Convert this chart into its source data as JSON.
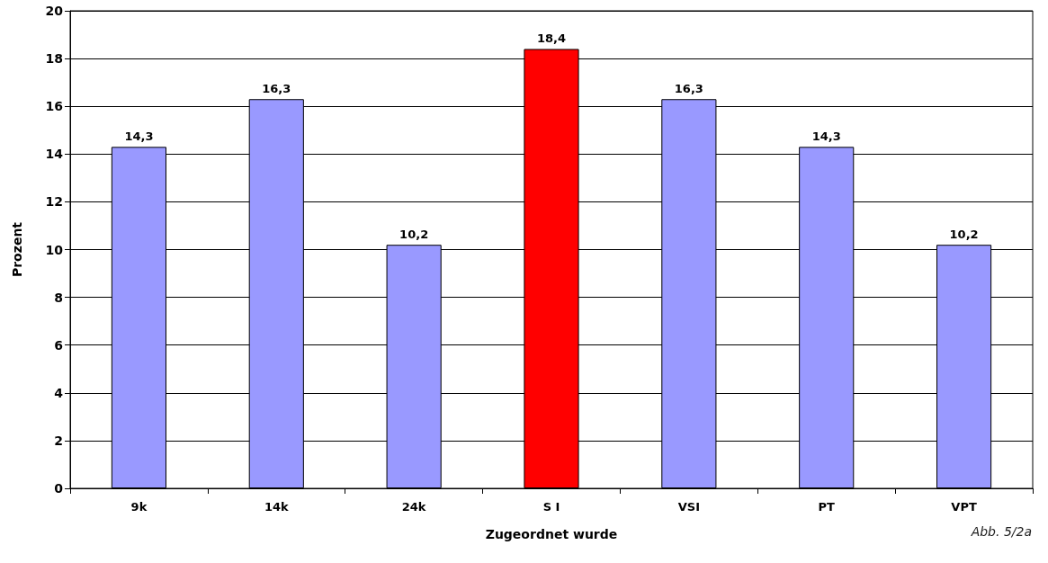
{
  "chart_data": {
    "type": "bar",
    "xlabel": "Zugeordnet wurde",
    "ylabel": "Prozent",
    "categories": [
      "9k",
      "14k",
      "24k",
      "S I",
      "VSI",
      "PT",
      "VPT"
    ],
    "values": [
      14.3,
      16.3,
      10.2,
      18.4,
      16.3,
      14.3,
      10.2
    ],
    "colors": [
      "#9999ff",
      "#9999ff",
      "#9999ff",
      "#ff0000",
      "#9999ff",
      "#9999ff",
      "#9999ff"
    ],
    "value_labels": [
      "14,3",
      "16,3",
      "10,2",
      "18,4",
      "16,3",
      "14,3",
      "10,2"
    ],
    "ylim": [
      0,
      20
    ],
    "yticks": [
      0,
      2,
      4,
      6,
      8,
      10,
      12,
      14,
      16,
      18,
      20
    ],
    "grid": "y",
    "annotations": [
      "Abb. 5/2a"
    ]
  }
}
